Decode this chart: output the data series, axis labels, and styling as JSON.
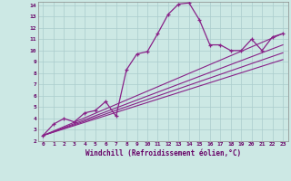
{
  "xlabel": "Windchill (Refroidissement éolien,°C)",
  "bg_color": "#cce8e4",
  "grid_color": "#aacccc",
  "line_color": "#882288",
  "xlim": [
    -0.5,
    23.5
  ],
  "ylim": [
    2,
    14.3
  ],
  "xticks": [
    0,
    1,
    2,
    3,
    4,
    5,
    6,
    7,
    8,
    9,
    10,
    11,
    12,
    13,
    14,
    15,
    16,
    17,
    18,
    19,
    20,
    21,
    22,
    23
  ],
  "yticks": [
    2,
    3,
    4,
    5,
    6,
    7,
    8,
    9,
    10,
    11,
    12,
    13,
    14
  ],
  "main_x": [
    0,
    1,
    2,
    3,
    4,
    5,
    6,
    7,
    8,
    9,
    10,
    11,
    12,
    13,
    14,
    15,
    16,
    17,
    18,
    19,
    20,
    21,
    22,
    23
  ],
  "main_y": [
    2.5,
    3.5,
    4.0,
    3.7,
    4.5,
    4.7,
    5.5,
    4.2,
    8.3,
    9.7,
    9.9,
    11.5,
    13.2,
    14.1,
    14.2,
    12.7,
    10.5,
    10.5,
    10.0,
    10.0,
    11.0,
    10.0,
    11.2,
    11.5
  ],
  "line1_x": [
    0,
    23
  ],
  "line1_y": [
    2.5,
    11.5
  ],
  "line2_x": [
    0,
    23
  ],
  "line2_y": [
    2.5,
    10.5
  ],
  "line3_x": [
    0,
    23
  ],
  "line3_y": [
    2.5,
    9.8
  ],
  "line4_x": [
    0,
    23
  ],
  "line4_y": [
    2.5,
    9.2
  ]
}
